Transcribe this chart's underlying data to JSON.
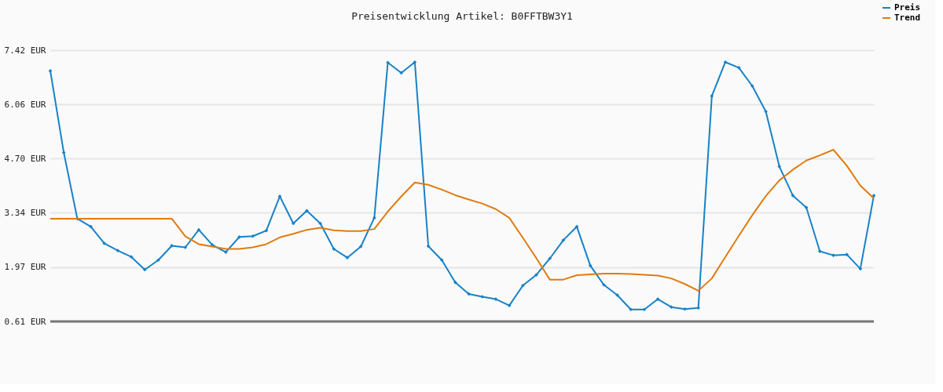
{
  "chart_data": {
    "type": "line",
    "title": "Preisentwicklung Artikel: B0FFTBW3Y1",
    "categories": [
      null,
      null,
      null,
      null,
      null,
      null,
      null,
      null,
      null,
      null,
      null,
      null,
      null,
      null,
      null,
      null,
      null,
      null,
      null,
      null,
      null,
      null,
      null,
      null,
      null,
      null,
      null,
      null,
      null,
      null,
      null,
      null,
      null,
      null,
      null,
      null,
      null,
      null,
      null,
      null,
      null,
      null,
      null,
      null,
      null,
      null,
      null,
      null,
      null,
      null,
      null,
      null,
      null,
      null,
      null,
      null,
      null,
      null,
      null,
      null,
      null,
      null
    ],
    "series": [
      {
        "name": "Preis",
        "color": "#1782c8",
        "marker": "diamond",
        "values": [
          6.9,
          4.85,
          3.19,
          2.99,
          2.57,
          2.39,
          2.23,
          1.91,
          2.15,
          2.51,
          2.47,
          2.91,
          2.53,
          2.35,
          2.73,
          2.75,
          2.89,
          3.75,
          3.07,
          3.39,
          3.07,
          2.43,
          2.21,
          2.49,
          3.21,
          7.11,
          6.85,
          7.12,
          2.5,
          2.15,
          1.59,
          1.3,
          1.23,
          1.17,
          1.01,
          1.51,
          1.78,
          2.19,
          2.65,
          2.99,
          2.01,
          1.53,
          1.27,
          0.91,
          0.91,
          1.17,
          0.97,
          0.92,
          0.95,
          6.27,
          7.12,
          6.98,
          6.52,
          5.88,
          4.5,
          3.77,
          3.47,
          2.37,
          2.27,
          2.29,
          1.93,
          3.77
        ]
      },
      {
        "name": "Trend",
        "color": "#e07b10",
        "marker": "none",
        "values": [
          3.19,
          3.19,
          3.19,
          3.19,
          3.19,
          3.19,
          3.19,
          3.19,
          3.19,
          3.19,
          2.75,
          2.55,
          2.49,
          2.43,
          2.43,
          2.47,
          2.55,
          2.72,
          2.81,
          2.91,
          2.96,
          2.9,
          2.88,
          2.88,
          2.93,
          3.37,
          3.75,
          4.1,
          4.04,
          3.92,
          3.78,
          3.67,
          3.57,
          3.43,
          3.21,
          2.71,
          2.2,
          1.66,
          1.66,
          1.77,
          1.79,
          1.81,
          1.81,
          1.8,
          1.78,
          1.76,
          1.69,
          1.55,
          1.38,
          1.69,
          2.23,
          2.76,
          3.28,
          3.76,
          4.15,
          4.42,
          4.65,
          4.78,
          4.92,
          4.52,
          4.02,
          3.7
        ]
      }
    ],
    "ylim": [
      0.61,
      7.42
    ],
    "yticks": [
      {
        "value": 0.61,
        "label": "0.61 EUR"
      },
      {
        "value": 1.97,
        "label": "1.97 EUR"
      },
      {
        "value": 3.34,
        "label": "3.34 EUR"
      },
      {
        "value": 4.7,
        "label": "4.70 EUR"
      },
      {
        "value": 6.06,
        "label": "6.06 EUR"
      },
      {
        "value": 7.42,
        "label": "7.42 EUR"
      }
    ],
    "grid": "y",
    "legend": "top right",
    "tick_labels": "y",
    "line_style": "solid"
  }
}
